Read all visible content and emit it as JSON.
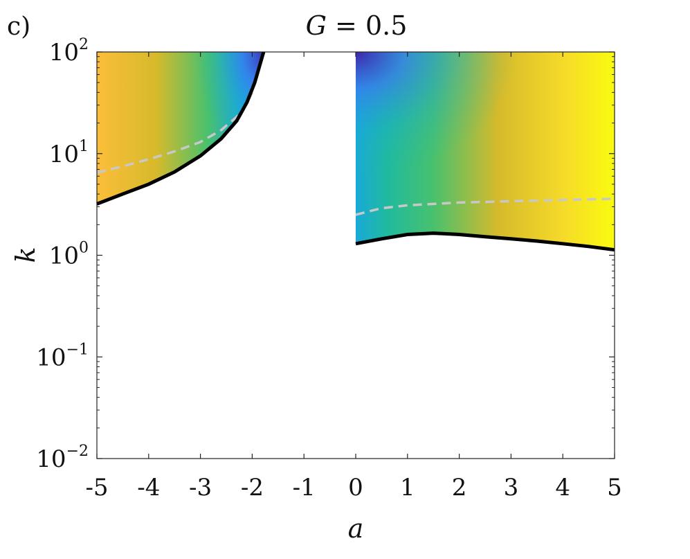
{
  "panel_label": "c)",
  "chart_data": {
    "type": "heatmap",
    "title": "G = 0.5",
    "title_math": {
      "var": "G",
      "rest": " = 0.5"
    },
    "xlabel": "a",
    "ylabel": "k",
    "xlim": [
      -5,
      5
    ],
    "ylim": [
      0.01,
      100
    ],
    "yscale": "log",
    "x_ticks": [
      -5,
      -4,
      -3,
      -2,
      -1,
      0,
      1,
      2,
      3,
      4,
      5
    ],
    "x_tick_labels": [
      "-5",
      "-4",
      "-3",
      "-2",
      "-1",
      "0",
      "1",
      "2",
      "3",
      "4",
      "5"
    ],
    "y_ticks": [
      {
        "value": 0.01,
        "base": "10",
        "exp": "−2"
      },
      {
        "value": 0.1,
        "base": "10",
        "exp": "−1"
      },
      {
        "value": 1,
        "base": "10",
        "exp": "0"
      },
      {
        "value": 10,
        "base": "10",
        "exp": "1"
      },
      {
        "value": 100,
        "base": "10",
        "exp": "2"
      }
    ],
    "colormap": [
      "#3e26a8",
      "#4744e8",
      "#3a86f5",
      "#19a9d8",
      "#1fbaa0",
      "#48c16e",
      "#9bc537",
      "#d6ba2b",
      "#fcbe3a",
      "#f5da2a",
      "#f9fb0e"
    ],
    "regions": [
      {
        "name": "left-unstable-region",
        "a_range": [
          -5,
          -1.78
        ],
        "lower_boundary": {
          "a": [
            -5,
            -4.5,
            -4,
            -3.5,
            -3,
            -2.6,
            -2.3,
            -2.1,
            -1.95,
            -1.85,
            -1.78
          ],
          "k": [
            3.2,
            4.0,
            5.0,
            6.6,
            9.5,
            14,
            21,
            32,
            50,
            75,
            100
          ]
        }
      },
      {
        "name": "right-unstable-region",
        "a_range": [
          0,
          5
        ],
        "lower_boundary": {
          "a": [
            0,
            0.5,
            1,
            1.5,
            2,
            2.5,
            3,
            3.5,
            4,
            4.5,
            5
          ],
          "k": [
            1.3,
            1.45,
            1.6,
            1.65,
            1.6,
            1.52,
            1.45,
            1.38,
            1.3,
            1.22,
            1.13
          ]
        }
      }
    ],
    "series": [
      {
        "style": "dashed-gray",
        "a": [
          -5,
          -4.5,
          -4,
          -3.5,
          -3,
          -2.6,
          -2.3,
          -2.1,
          -2.0
        ],
        "k": [
          6.5,
          7.5,
          8.8,
          10.5,
          13,
          17,
          23,
          31,
          40
        ]
      },
      {
        "style": "dashed-gray",
        "a": [
          0,
          0.25,
          0.5,
          1,
          2,
          3,
          4,
          5
        ],
        "k": [
          2.5,
          2.7,
          2.9,
          3.1,
          3.3,
          3.4,
          3.5,
          3.6
        ]
      }
    ],
    "grid": false
  }
}
